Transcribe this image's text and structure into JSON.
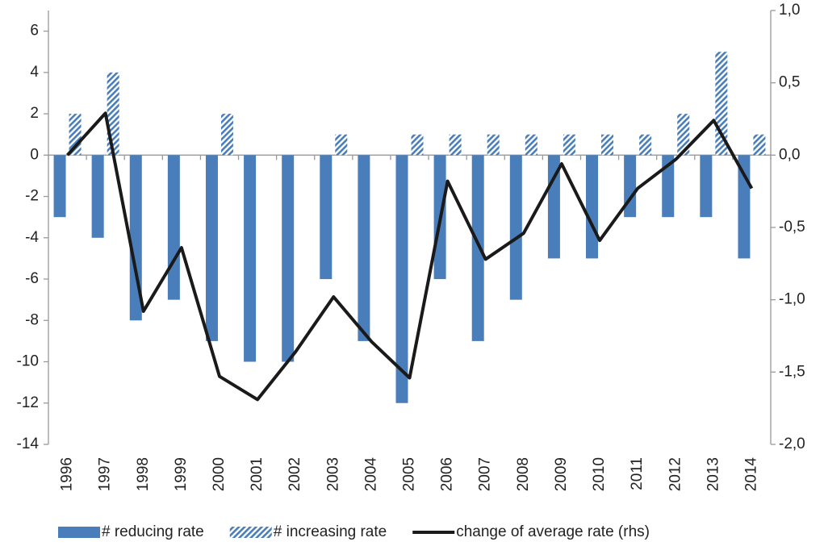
{
  "chart_data": {
    "type": "bar",
    "categories": [
      "1996",
      "1997",
      "1998",
      "1999",
      "2000",
      "2001",
      "2002",
      "2003",
      "2004",
      "2005",
      "2006",
      "2007",
      "2008",
      "2009",
      "2010",
      "2011",
      "2012",
      "2013",
      "2014"
    ],
    "series": [
      {
        "name": "# reducing rate",
        "type": "bar",
        "color": "#4a7ebb",
        "hatch": false,
        "values": [
          -3,
          -4,
          -8,
          -7,
          -9,
          -10,
          -10,
          -6,
          -9,
          -12,
          -6,
          -9,
          -7,
          -5,
          -5,
          -3,
          -3,
          -3,
          -5
        ]
      },
      {
        "name": "# increasing rate",
        "type": "bar",
        "color": "#4a7ebb",
        "hatch": true,
        "values": [
          2,
          4,
          0,
          0,
          2,
          0,
          0,
          1,
          0,
          1,
          1,
          1,
          1,
          1,
          1,
          1,
          2,
          5,
          1
        ]
      },
      {
        "name": "change of average rate (rhs)",
        "type": "line",
        "color": "#1a1a1a",
        "axis": "y2",
        "values": [
          0.0,
          0.29,
          -1.08,
          -0.64,
          -1.53,
          -1.69,
          -1.36,
          -0.98,
          -1.29,
          -1.54,
          -0.18,
          -0.72,
          -0.54,
          -0.06,
          -0.59,
          -0.23,
          -0.03,
          0.24,
          -0.23
        ]
      }
    ],
    "ylim": [
      -14,
      7
    ],
    "yticks": [
      -14,
      -12,
      -10,
      -8,
      -6,
      -4,
      -2,
      0,
      2,
      4,
      6
    ],
    "y2lim": [
      -2,
      1
    ],
    "y2ticks": [
      {
        "value": -2,
        "label": "-2,0"
      },
      {
        "value": -1.5,
        "label": "-1,5"
      },
      {
        "value": -1,
        "label": "-1,0"
      },
      {
        "value": -0.5,
        "label": "-0,5"
      },
      {
        "value": 0,
        "label": "0,0"
      },
      {
        "value": 0.5,
        "label": "0,5"
      },
      {
        "value": 1,
        "label": "1,0"
      }
    ],
    "grid": false,
    "legend": "bottom"
  }
}
